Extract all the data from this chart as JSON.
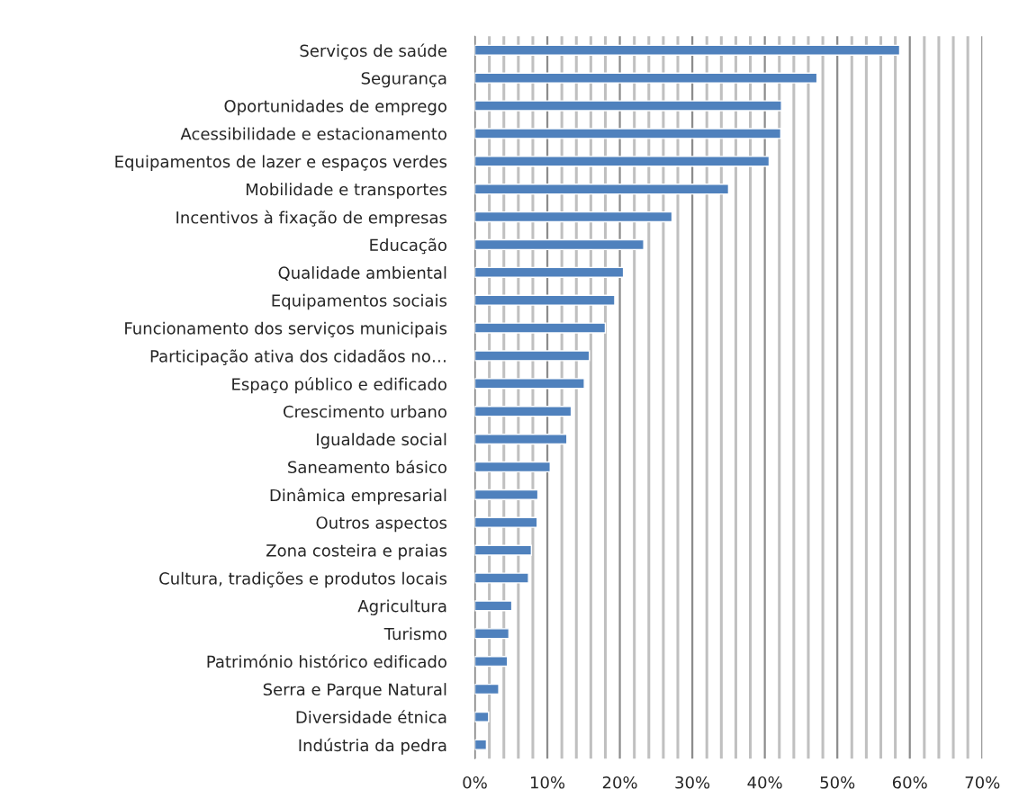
{
  "chart_data": {
    "type": "bar",
    "orientation": "horizontal",
    "color": "#4f81bd",
    "categories": [
      "Serviços de saúde",
      "Segurança",
      "Oportunidades de emprego",
      "Acessibilidade e estacionamento",
      "Equipamentos de lazer e espaços verdes",
      "Mobilidade e transportes",
      "Incentivos à fixação de empresas",
      "Educação",
      "Qualidade ambiental",
      "Equipamentos sociais",
      "Funcionamento dos serviços municipais",
      "Participação ativa dos cidadãos no…",
      "Espaço público e edificado",
      "Crescimento urbano",
      "Igualdade social",
      "Saneamento básico",
      "Dinâmica empresarial",
      "Outros aspectos",
      "Zona costeira e praias",
      "Cultura, tradições e produtos locais",
      "Agricultura",
      "Turismo",
      "Património histórico edificado",
      "Serra e Parque Natural",
      "Diversidade étnica",
      "Indústria da pedra"
    ],
    "values": [
      58.6,
      47.2,
      42.3,
      42.2,
      40.6,
      35.0,
      27.2,
      23.3,
      20.5,
      19.3,
      18.0,
      15.8,
      15.1,
      13.3,
      12.7,
      10.4,
      8.7,
      8.6,
      7.8,
      7.4,
      5.1,
      4.7,
      4.5,
      3.3,
      1.9,
      1.6
    ],
    "xlim": [
      0,
      70
    ],
    "xticks": [
      {
        "value": 0,
        "label": "0%"
      },
      {
        "value": 2,
        "label": null
      },
      {
        "value": 4,
        "label": null
      },
      {
        "value": 6,
        "label": null
      },
      {
        "value": 8,
        "label": null
      },
      {
        "value": 10,
        "label": "10%"
      },
      {
        "value": 12,
        "label": null
      },
      {
        "value": 14,
        "label": null
      },
      {
        "value": 16,
        "label": null
      },
      {
        "value": 18,
        "label": null
      },
      {
        "value": 20,
        "label": "20%"
      },
      {
        "value": 22,
        "label": null
      },
      {
        "value": 24,
        "label": null
      },
      {
        "value": 26,
        "label": null
      },
      {
        "value": 28,
        "label": null
      },
      {
        "value": 30,
        "label": "30%"
      },
      {
        "value": 32,
        "label": null
      },
      {
        "value": 34,
        "label": null
      },
      {
        "value": 36,
        "label": null
      },
      {
        "value": 38,
        "label": null
      },
      {
        "value": 40,
        "label": "40%"
      },
      {
        "value": 42,
        "label": null
      },
      {
        "value": 44,
        "label": null
      },
      {
        "value": 46,
        "label": null
      },
      {
        "value": 48,
        "label": null
      },
      {
        "value": 50,
        "label": "50%"
      },
      {
        "value": 52,
        "label": null
      },
      {
        "value": 54,
        "label": null
      },
      {
        "value": 56,
        "label": null
      },
      {
        "value": 58,
        "label": null
      },
      {
        "value": 60,
        "label": "60%"
      },
      {
        "value": 62,
        "label": null
      },
      {
        "value": 64,
        "label": null
      },
      {
        "value": 66,
        "label": null
      },
      {
        "value": 68,
        "label": null
      },
      {
        "value": 70,
        "label": "70%"
      }
    ],
    "grid": "x"
  }
}
